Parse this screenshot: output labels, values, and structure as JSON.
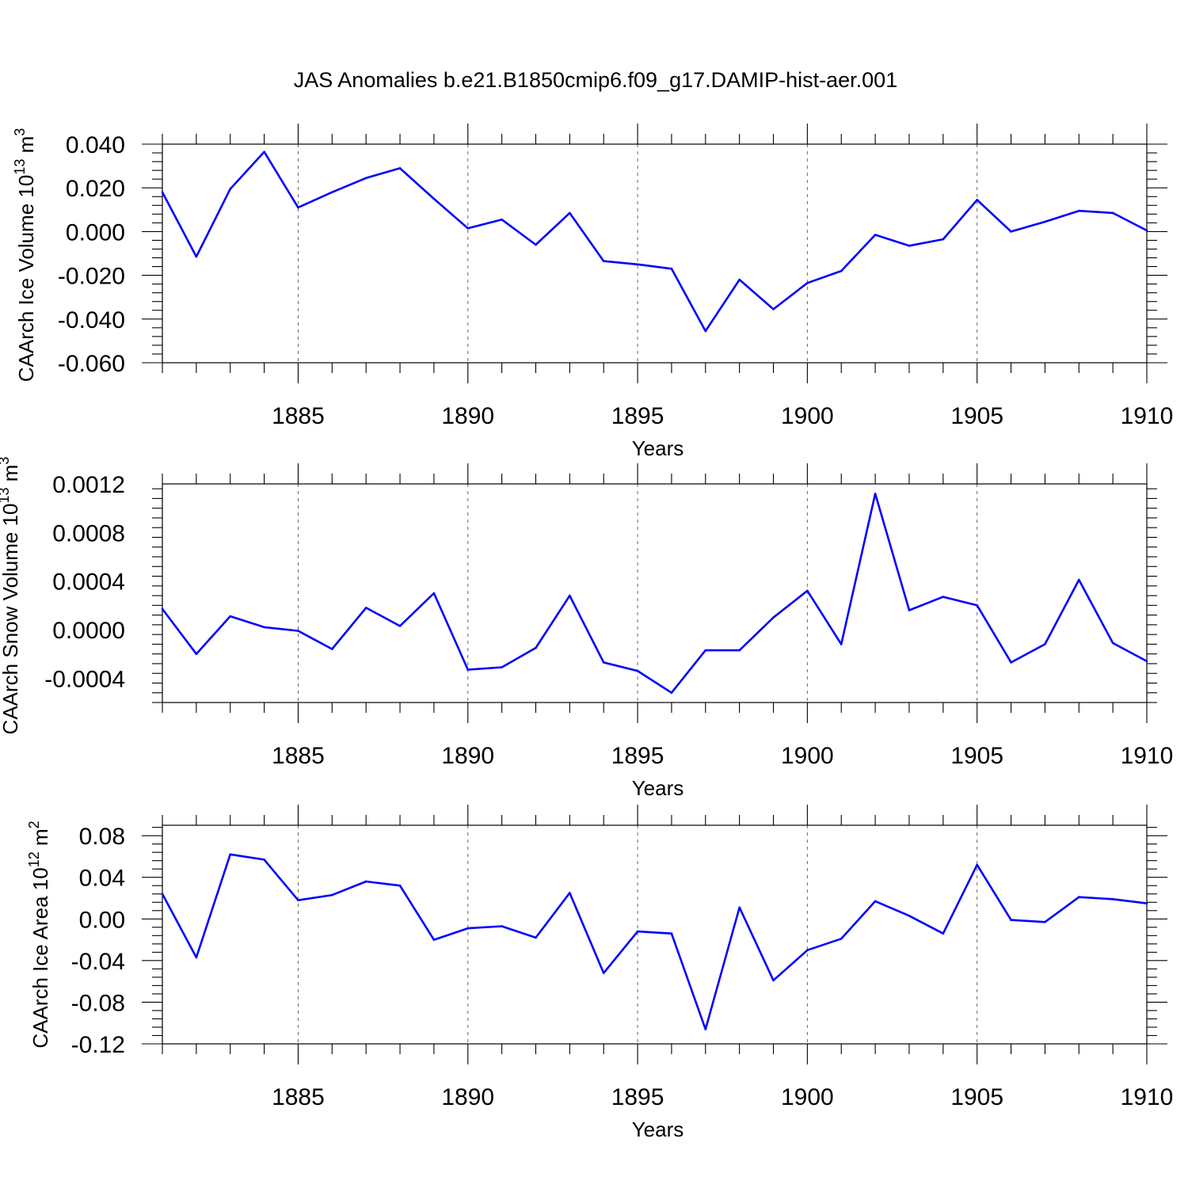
{
  "title": "JAS Anomalies b.e21.B1850cmip6.f09_g17.DAMIP-hist-aer.001",
  "colors": {
    "line": "#0000ff",
    "grid": "#666666"
  },
  "chart_data": [
    {
      "type": "line",
      "name": "ice-volume",
      "xlabel": "Years",
      "ylabel": {
        "text": "CAArch Ice Volume 10",
        "exp": "13",
        "unit": " m",
        "unit_exp": "3"
      },
      "xlim": [
        1881,
        1910
      ],
      "ylim": [
        -0.06,
        0.04
      ],
      "xticks": [
        "1885",
        "1890",
        "1895",
        "1900",
        "1905",
        "1910"
      ],
      "yticks": [
        "0.040",
        "0.020",
        "0.000",
        "-0.020",
        "-0.040",
        "-0.060"
      ],
      "grid": "vertical-dashed",
      "x": [
        1881,
        1882,
        1883,
        1884,
        1885,
        1886,
        1887,
        1888,
        1889,
        1890,
        1891,
        1892,
        1893,
        1894,
        1895,
        1896,
        1897,
        1898,
        1899,
        1900,
        1901,
        1902,
        1903,
        1904,
        1905,
        1906,
        1907,
        1908,
        1909,
        1910
      ],
      "values": [
        0.018,
        -0.0115,
        0.0195,
        0.0365,
        0.011,
        0.018,
        0.0245,
        0.029,
        0.015,
        0.0015,
        0.0055,
        -0.006,
        0.0085,
        -0.0135,
        -0.015,
        -0.017,
        -0.0455,
        -0.022,
        -0.0355,
        -0.0235,
        -0.018,
        -0.0015,
        -0.0065,
        -0.0035,
        0.0145,
        0.0,
        0.0045,
        0.0095,
        0.0085,
        0.0005
      ]
    },
    {
      "type": "line",
      "name": "snow-volume",
      "xlabel": "Years",
      "ylabel": {
        "text": "CAArch Snow Volume 10",
        "exp": "13",
        "unit": " m",
        "unit_exp": "3"
      },
      "xlim": [
        1881,
        1910
      ],
      "ylim": [
        -0.0006,
        0.0012
      ],
      "xticks": [
        "1885",
        "1890",
        "1895",
        "1900",
        "1905",
        "1910"
      ],
      "yticks": [
        "0.0012",
        "0.0008",
        "0.0004",
        "0.0000",
        "-0.0004"
      ],
      "grid": "vertical-dashed",
      "x": [
        1881,
        1882,
        1883,
        1884,
        1885,
        1886,
        1887,
        1888,
        1889,
        1890,
        1891,
        1892,
        1893,
        1894,
        1895,
        1896,
        1897,
        1898,
        1899,
        1900,
        1901,
        1902,
        1903,
        1904,
        1905,
        1906,
        1907,
        1908,
        1909,
        1910
      ],
      "values": [
        0.00017,
        -0.0002,
        0.00011,
        2e-05,
        -1e-05,
        -0.00016,
        0.00018,
        3e-05,
        0.0003,
        -0.00033,
        -0.00031,
        -0.00015,
        0.00028,
        -0.00027,
        -0.00034,
        -0.00052,
        -0.00017,
        -0.00017,
        0.0001,
        0.00032,
        -0.00012,
        0.00112,
        0.00016,
        0.00027,
        0.0002,
        -0.00027,
        -0.00012,
        0.00041,
        -0.00011,
        -0.00026
      ]
    },
    {
      "type": "line",
      "name": "ice-area",
      "xlabel": "Years",
      "ylabel": {
        "text": "CAArch Ice Area 10",
        "exp": "12",
        "unit": " m",
        "unit_exp": "2"
      },
      "xlim": [
        1881,
        1910
      ],
      "ylim": [
        -0.12,
        0.09
      ],
      "xticks": [
        "1885",
        "1890",
        "1895",
        "1900",
        "1905",
        "1910"
      ],
      "yticks": [
        "0.08",
        "0.04",
        "0.00",
        "-0.04",
        "-0.08",
        "-0.12"
      ],
      "grid": "vertical-dashed",
      "x": [
        1881,
        1882,
        1883,
        1884,
        1885,
        1886,
        1887,
        1888,
        1889,
        1890,
        1891,
        1892,
        1893,
        1894,
        1895,
        1896,
        1897,
        1898,
        1899,
        1900,
        1901,
        1902,
        1903,
        1904,
        1905,
        1906,
        1907,
        1908,
        1909,
        1910
      ],
      "values": [
        0.024,
        -0.037,
        0.062,
        0.057,
        0.018,
        0.023,
        0.036,
        0.032,
        -0.02,
        -0.009,
        -0.007,
        -0.018,
        0.025,
        -0.052,
        -0.012,
        -0.014,
        -0.106,
        0.011,
        -0.059,
        -0.03,
        -0.019,
        0.017,
        0.003,
        -0.014,
        0.052,
        -0.001,
        -0.003,
        0.021,
        0.019,
        0.015
      ]
    }
  ]
}
